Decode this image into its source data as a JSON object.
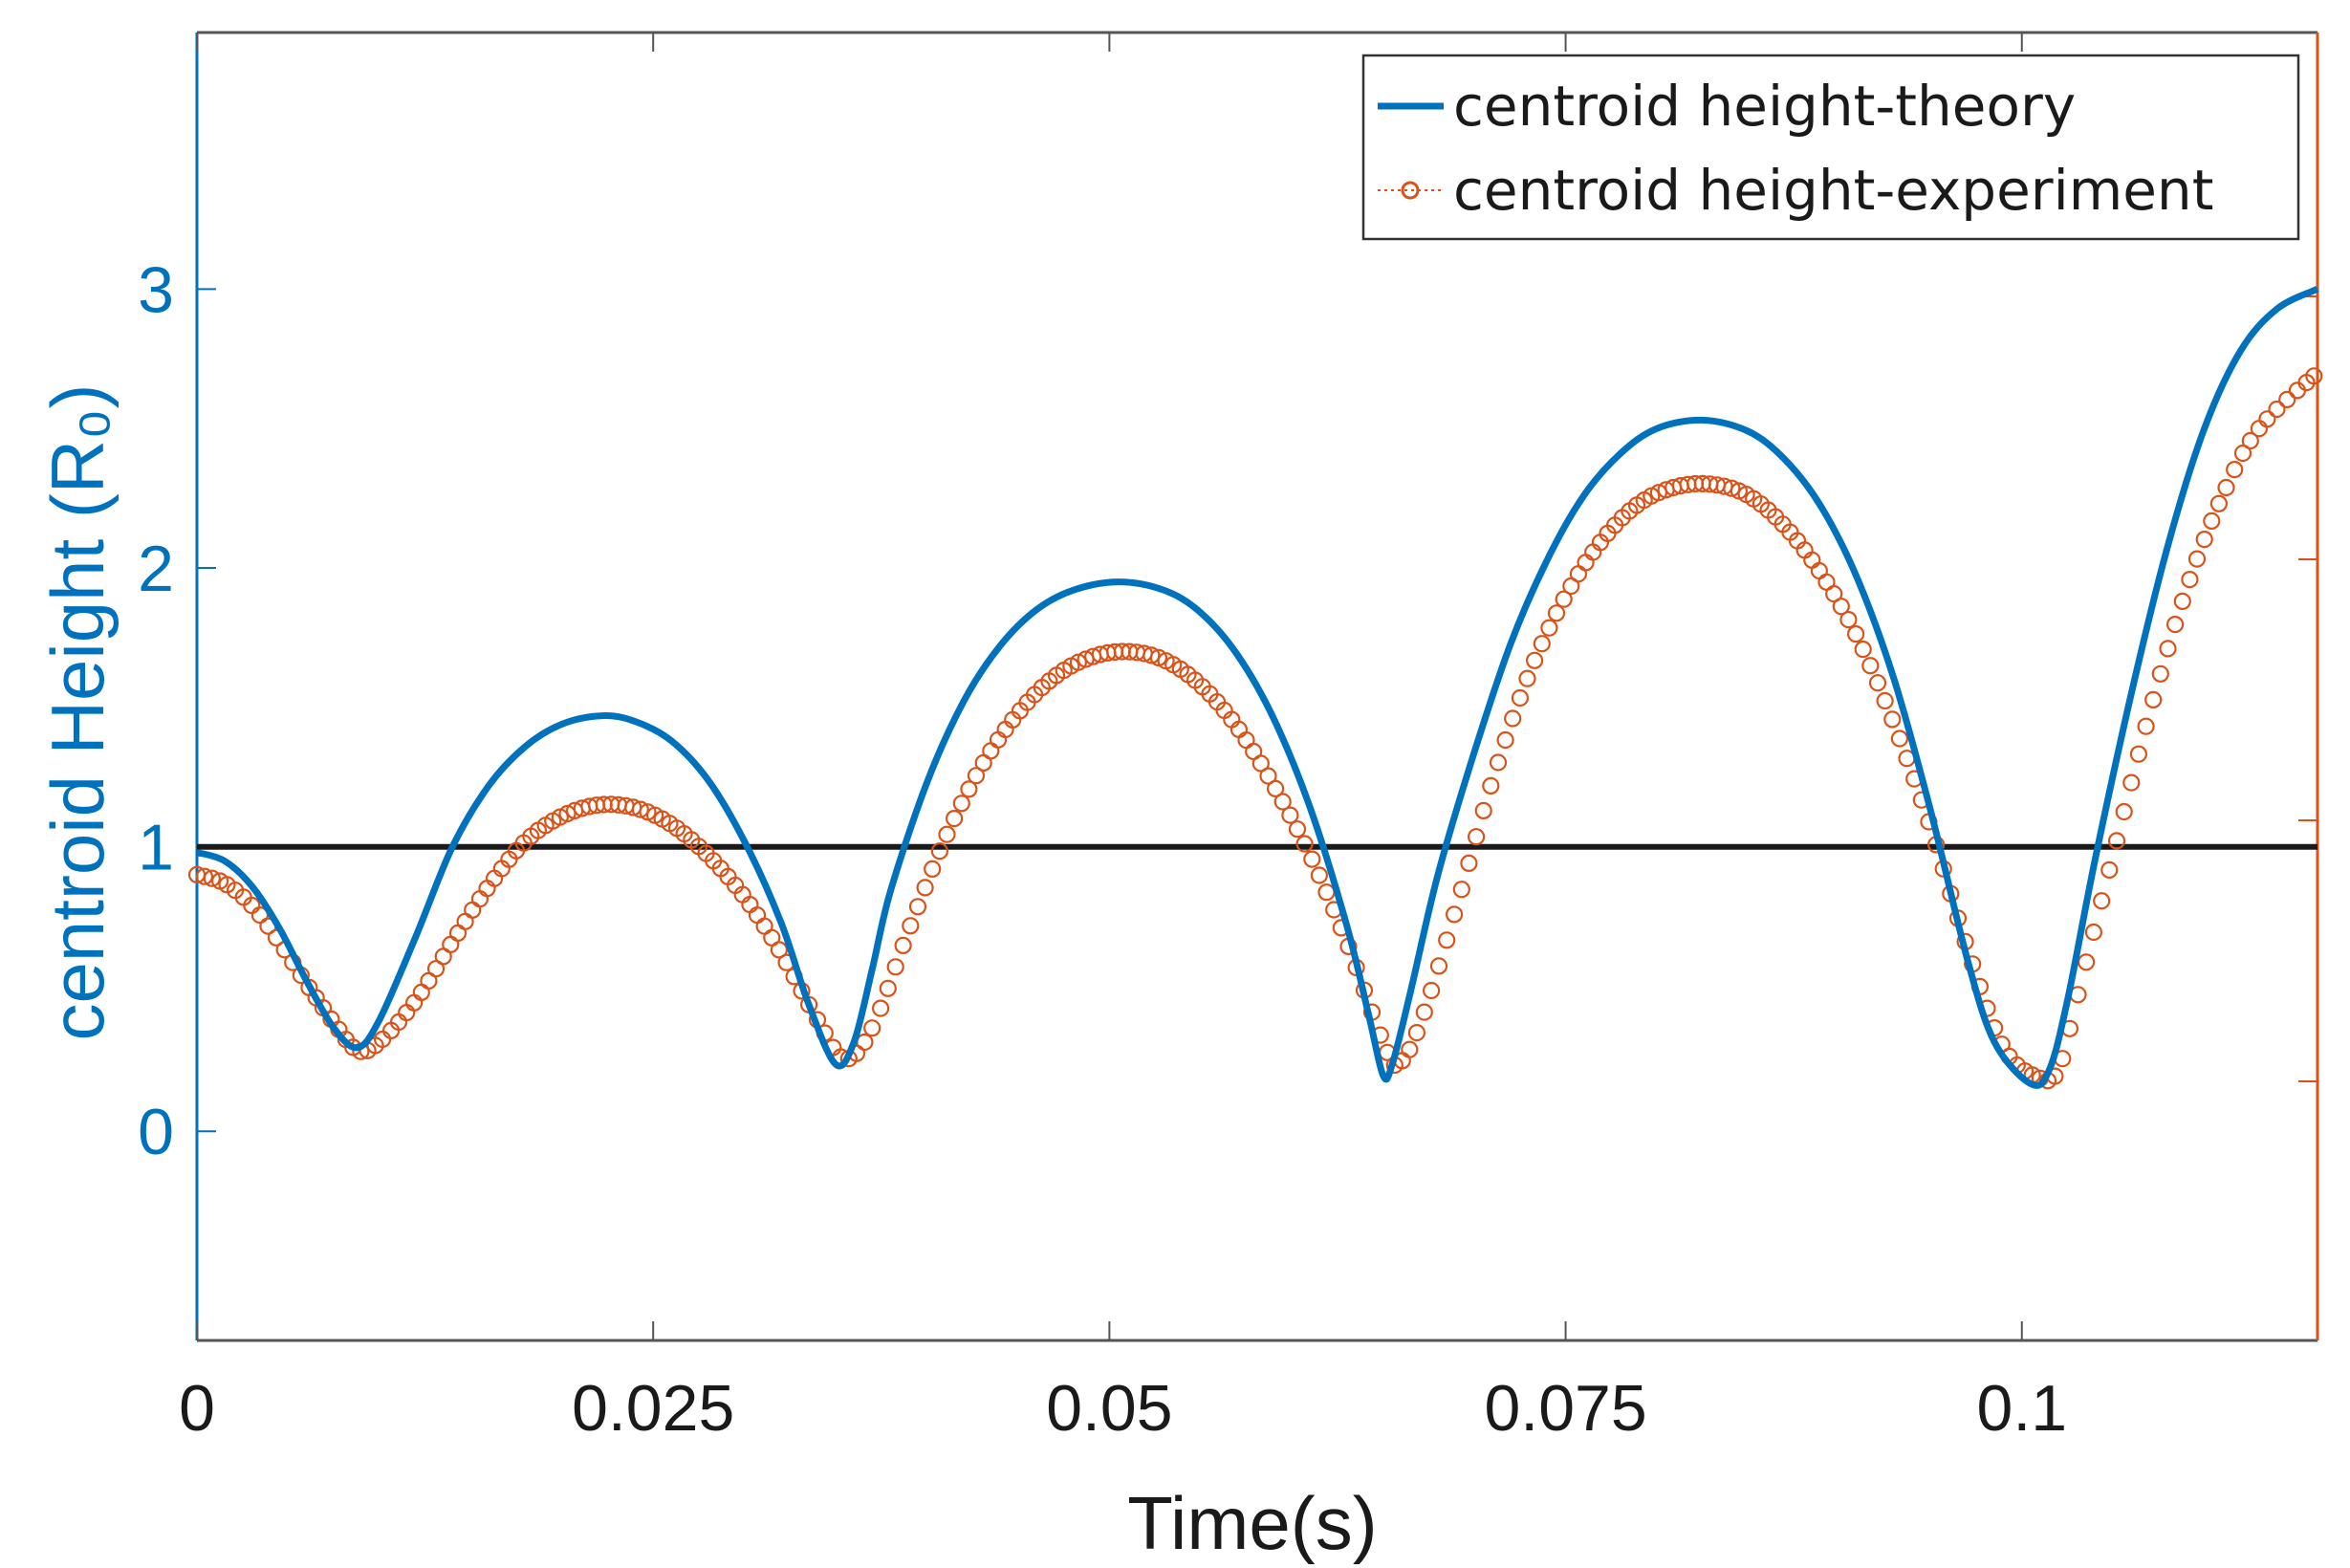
{
  "chart_data": {
    "type": "line",
    "xlabel": "Time(s)",
    "ylabel": "centroid Height (R₀)",
    "xlim": [
      0,
      0.1162
    ],
    "ylim": [
      -0.77,
      3.92
    ],
    "x_ticks": [
      {
        "value": 0,
        "label": "0"
      },
      {
        "value": 0.025,
        "label": "0.025"
      },
      {
        "value": 0.05,
        "label": "0.05"
      },
      {
        "value": 0.075,
        "label": "0.075"
      },
      {
        "value": 0.1,
        "label": "0.1"
      }
    ],
    "y_ticks": [
      {
        "value": -0.02,
        "label": "0"
      },
      {
        "value": 1.0,
        "label": "1"
      },
      {
        "value": 2.0,
        "label": "2"
      },
      {
        "value": 3.0,
        "label": "3"
      }
    ],
    "reference_line": {
      "y": 1.0,
      "color": "#1a1a1a"
    },
    "legend": {
      "position": "top-right"
    },
    "colors": {
      "theory": "#0072BD",
      "experiment": "#D95319",
      "ylabel": "#0072BD",
      "right_axis": "#D95319"
    },
    "series": [
      {
        "name": "centroid height-theory",
        "style": "solid-line",
        "points": [
          [
            0.0,
            0.98
          ],
          [
            0.0015,
            0.95
          ],
          [
            0.003,
            0.86
          ],
          [
            0.0045,
            0.71
          ],
          [
            0.006,
            0.52
          ],
          [
            0.0075,
            0.35
          ],
          [
            0.0088,
            0.28
          ],
          [
            0.01,
            0.38
          ],
          [
            0.012,
            0.68
          ],
          [
            0.014,
            1.0
          ],
          [
            0.016,
            1.22
          ],
          [
            0.018,
            1.36
          ],
          [
            0.02,
            1.44
          ],
          [
            0.0222,
            1.47
          ],
          [
            0.024,
            1.45
          ],
          [
            0.026,
            1.38
          ],
          [
            0.028,
            1.24
          ],
          [
            0.03,
            1.02
          ],
          [
            0.032,
            0.73
          ],
          [
            0.0335,
            0.44
          ],
          [
            0.035,
            0.22
          ],
          [
            0.036,
            0.3
          ],
          [
            0.037,
            0.56
          ],
          [
            0.038,
            0.84
          ],
          [
            0.04,
            1.23
          ],
          [
            0.042,
            1.52
          ],
          [
            0.044,
            1.72
          ],
          [
            0.046,
            1.85
          ],
          [
            0.048,
            1.92
          ],
          [
            0.0505,
            1.95
          ],
          [
            0.053,
            1.92
          ],
          [
            0.055,
            1.84
          ],
          [
            0.057,
            1.69
          ],
          [
            0.059,
            1.46
          ],
          [
            0.061,
            1.14
          ],
          [
            0.063,
            0.72
          ],
          [
            0.0642,
            0.4
          ],
          [
            0.065,
            0.18
          ],
          [
            0.0655,
            0.22
          ],
          [
            0.0665,
            0.48
          ],
          [
            0.068,
            0.9
          ],
          [
            0.07,
            1.34
          ],
          [
            0.072,
            1.73
          ],
          [
            0.074,
            2.03
          ],
          [
            0.076,
            2.26
          ],
          [
            0.078,
            2.41
          ],
          [
            0.08,
            2.5
          ],
          [
            0.0825,
            2.53
          ],
          [
            0.085,
            2.49
          ],
          [
            0.087,
            2.39
          ],
          [
            0.089,
            2.22
          ],
          [
            0.091,
            1.96
          ],
          [
            0.093,
            1.6
          ],
          [
            0.095,
            1.13
          ],
          [
            0.097,
            0.6
          ],
          [
            0.0985,
            0.3
          ],
          [
            0.1005,
            0.15
          ],
          [
            0.1015,
            0.2
          ],
          [
            0.1025,
            0.45
          ],
          [
            0.104,
            0.95
          ],
          [
            0.106,
            1.55
          ],
          [
            0.108,
            2.08
          ],
          [
            0.11,
            2.5
          ],
          [
            0.112,
            2.78
          ],
          [
            0.114,
            2.93
          ],
          [
            0.1162,
            3.0
          ]
        ]
      },
      {
        "name": "centroid height-experiment",
        "style": "circle-markers",
        "points": [
          [
            0.0,
            0.9
          ],
          [
            0.0015,
            0.87
          ],
          [
            0.003,
            0.79
          ],
          [
            0.0045,
            0.66
          ],
          [
            0.006,
            0.51
          ],
          [
            0.0075,
            0.37
          ],
          [
            0.0088,
            0.27
          ],
          [
            0.01,
            0.3
          ],
          [
            0.012,
            0.45
          ],
          [
            0.014,
            0.66
          ],
          [
            0.016,
            0.86
          ],
          [
            0.018,
            1.02
          ],
          [
            0.02,
            1.11
          ],
          [
            0.022,
            1.15
          ],
          [
            0.024,
            1.14
          ],
          [
            0.026,
            1.08
          ],
          [
            0.028,
            0.97
          ],
          [
            0.03,
            0.82
          ],
          [
            0.032,
            0.62
          ],
          [
            0.034,
            0.38
          ],
          [
            0.0355,
            0.24
          ],
          [
            0.037,
            0.35
          ],
          [
            0.039,
            0.7
          ],
          [
            0.041,
            1.03
          ],
          [
            0.043,
            1.29
          ],
          [
            0.045,
            1.48
          ],
          [
            0.047,
            1.61
          ],
          [
            0.049,
            1.68
          ],
          [
            0.051,
            1.7
          ],
          [
            0.053,
            1.67
          ],
          [
            0.055,
            1.58
          ],
          [
            0.057,
            1.43
          ],
          [
            0.059,
            1.22
          ],
          [
            0.061,
            0.97
          ],
          [
            0.063,
            0.66
          ],
          [
            0.065,
            0.3
          ],
          [
            0.0658,
            0.22
          ],
          [
            0.067,
            0.36
          ],
          [
            0.069,
            0.78
          ],
          [
            0.071,
            1.24
          ],
          [
            0.073,
            1.62
          ],
          [
            0.075,
            1.9
          ],
          [
            0.077,
            2.1
          ],
          [
            0.079,
            2.23
          ],
          [
            0.081,
            2.29
          ],
          [
            0.083,
            2.3
          ],
          [
            0.085,
            2.26
          ],
          [
            0.087,
            2.15
          ],
          [
            0.089,
            1.98
          ],
          [
            0.091,
            1.75
          ],
          [
            0.093,
            1.44
          ],
          [
            0.095,
            1.07
          ],
          [
            0.097,
            0.64
          ],
          [
            0.099,
            0.28
          ],
          [
            0.101,
            0.17
          ],
          [
            0.102,
            0.2
          ],
          [
            0.103,
            0.45
          ],
          [
            0.105,
            0.97
          ],
          [
            0.107,
            1.48
          ],
          [
            0.109,
            1.92
          ],
          [
            0.111,
            2.26
          ],
          [
            0.113,
            2.5
          ],
          [
            0.1162,
            2.7
          ]
        ]
      }
    ]
  }
}
